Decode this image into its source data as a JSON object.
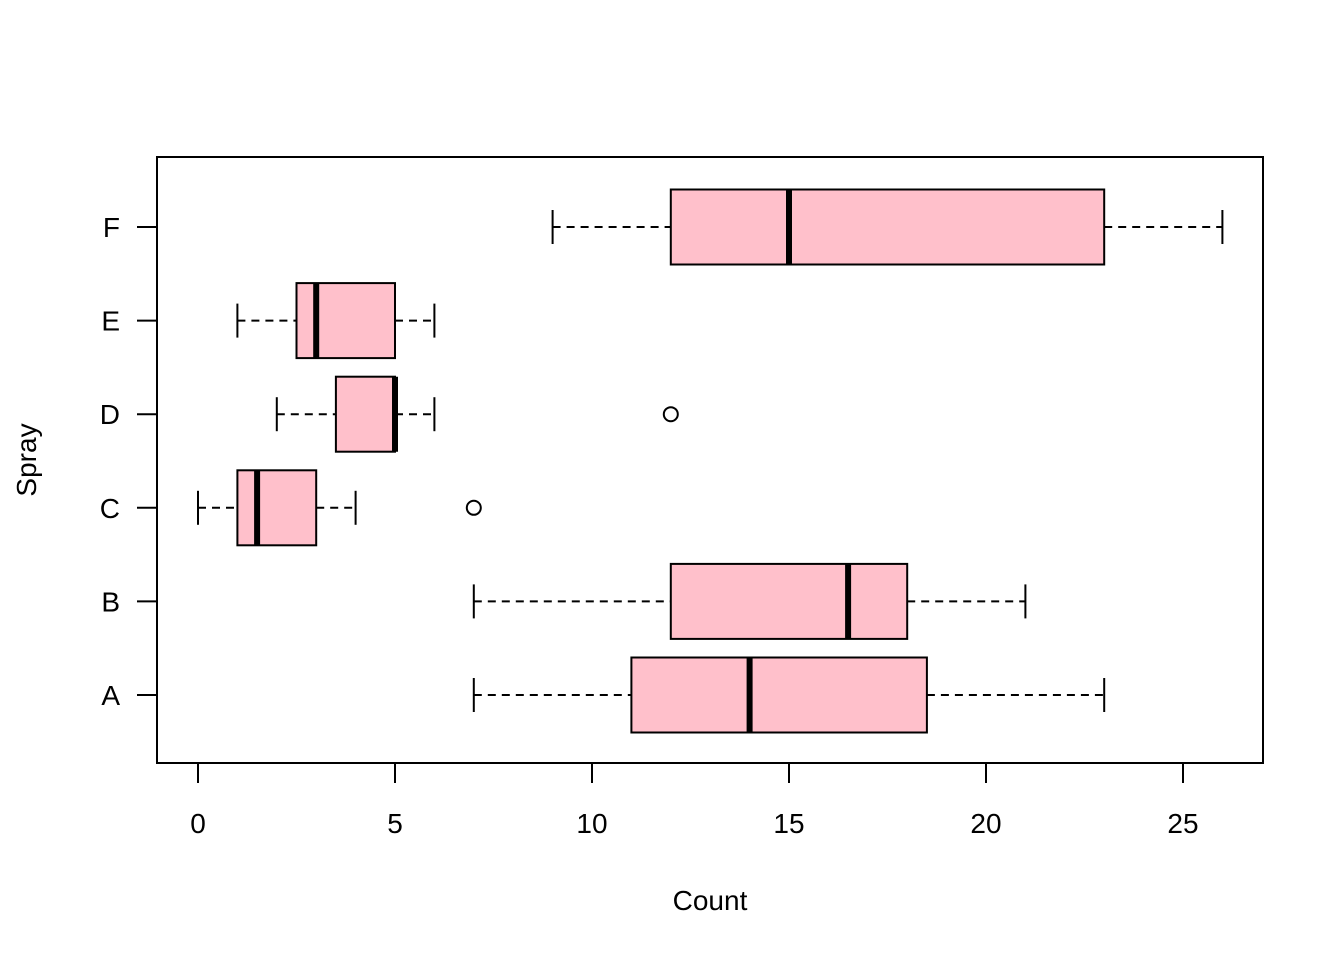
{
  "chart_data": {
    "type": "boxplot",
    "orientation": "horizontal",
    "title": "",
    "xlabel": "Count",
    "ylabel": "Spray",
    "xlim": [
      -1,
      27.1
    ],
    "xticks": [
      0,
      5,
      10,
      15,
      20,
      25
    ],
    "xtick_labels": [
      "0",
      "5",
      "10",
      "15",
      "20",
      "25"
    ],
    "box_fill": "#FFC0CB",
    "categories": [
      "A",
      "B",
      "C",
      "D",
      "E",
      "F"
    ],
    "boxes": [
      {
        "name": "A",
        "whisker_low": 7,
        "q1": 11,
        "median": 14,
        "q3": 18.5,
        "whisker_high": 23,
        "outliers": []
      },
      {
        "name": "B",
        "whisker_low": 7,
        "q1": 12,
        "median": 16.5,
        "q3": 18,
        "whisker_high": 21,
        "outliers": []
      },
      {
        "name": "C",
        "whisker_low": 0,
        "q1": 1,
        "median": 1.5,
        "q3": 3,
        "whisker_high": 4,
        "outliers": [
          7
        ]
      },
      {
        "name": "D",
        "whisker_low": 2,
        "q1": 3.5,
        "median": 5,
        "q3": 5,
        "whisker_high": 6,
        "outliers": [
          12
        ]
      },
      {
        "name": "E",
        "whisker_low": 1,
        "q1": 2.5,
        "median": 3,
        "q3": 5,
        "whisker_high": 6,
        "outliers": []
      },
      {
        "name": "F",
        "whisker_low": 9,
        "q1": 12,
        "median": 15,
        "q3": 23,
        "whisker_high": 26,
        "outliers": []
      }
    ]
  }
}
